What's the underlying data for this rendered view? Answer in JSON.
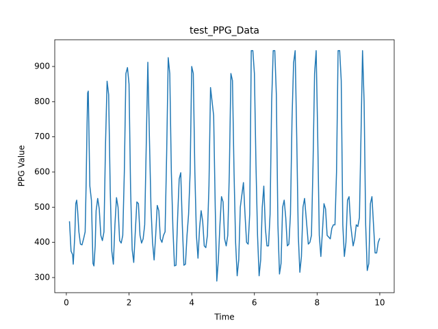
{
  "chart_data": {
    "type": "line",
    "title": "test_PPG_Data",
    "x_label": "Time",
    "y_label": "PPG Value",
    "xlim": [
      -0.37,
      10.46
    ],
    "ylim": [
      257,
      976
    ],
    "xticks": [
      0,
      2,
      4,
      6,
      8,
      10
    ],
    "yticks": [
      300,
      400,
      500,
      600,
      700,
      800,
      900
    ],
    "series": [
      {
        "color": "#1f77b4",
        "x": [
          0.1,
          0.15,
          0.2,
          0.22,
          0.27,
          0.3,
          0.33,
          0.36,
          0.4,
          0.45,
          0.5,
          0.55,
          0.6,
          0.63,
          0.66,
          0.68,
          0.7,
          0.72,
          0.75,
          0.8,
          0.85,
          0.88,
          0.92,
          0.95,
          1.0,
          1.05,
          1.1,
          1.15,
          1.2,
          1.25,
          1.3,
          1.35,
          1.4,
          1.45,
          1.5,
          1.55,
          1.6,
          1.65,
          1.7,
          1.75,
          1.8,
          1.85,
          1.9,
          1.95,
          2.0,
          2.05,
          2.1,
          2.15,
          2.2,
          2.25,
          2.3,
          2.35,
          2.4,
          2.45,
          2.5,
          2.55,
          2.6,
          2.65,
          2.7,
          2.75,
          2.8,
          2.85,
          2.9,
          2.95,
          3.0,
          3.05,
          3.1,
          3.15,
          3.2,
          3.25,
          3.3,
          3.35,
          3.4,
          3.45,
          3.5,
          3.55,
          3.6,
          3.65,
          3.7,
          3.75,
          3.8,
          3.85,
          3.9,
          3.95,
          4.0,
          4.05,
          4.1,
          4.15,
          4.2,
          4.25,
          4.3,
          4.35,
          4.4,
          4.45,
          4.5,
          4.55,
          4.6,
          4.7,
          4.75,
          4.8,
          4.85,
          4.9,
          4.95,
          5.0,
          5.05,
          5.1,
          5.15,
          5.2,
          5.25,
          5.3,
          5.35,
          5.4,
          5.45,
          5.5,
          5.55,
          5.65,
          5.7,
          5.75,
          5.8,
          5.85,
          5.9,
          5.95,
          6.0,
          6.05,
          6.1,
          6.15,
          6.2,
          6.25,
          6.3,
          6.35,
          6.4,
          6.45,
          6.5,
          6.55,
          6.6,
          6.65,
          6.7,
          6.75,
          6.8,
          6.85,
          6.9,
          6.95,
          7.0,
          7.05,
          7.1,
          7.15,
          7.2,
          7.25,
          7.3,
          7.35,
          7.4,
          7.45,
          7.5,
          7.55,
          7.6,
          7.67,
          7.72,
          7.77,
          7.82,
          7.87,
          7.92,
          7.97,
          8.02,
          8.07,
          8.12,
          8.17,
          8.22,
          8.27,
          8.32,
          8.42,
          8.47,
          8.52,
          8.57,
          8.62,
          8.67,
          8.72,
          8.77,
          8.82,
          8.87,
          8.92,
          8.97,
          9.02,
          9.07,
          9.15,
          9.2,
          9.25,
          9.3,
          9.35,
          9.4,
          9.45,
          9.5,
          9.55,
          9.6,
          9.65,
          9.7,
          9.75,
          9.8,
          9.85,
          9.9,
          9.95,
          10.0
        ],
        "values": [
          460,
          375,
          365,
          338,
          420,
          510,
          520,
          490,
          430,
          395,
          393,
          410,
          430,
          560,
          730,
          825,
          830,
          720,
          560,
          520,
          340,
          333,
          390,
          490,
          525,
          495,
          420,
          405,
          430,
          680,
          858,
          820,
          550,
          375,
          338,
          450,
          527,
          500,
          405,
          398,
          420,
          600,
          880,
          897,
          850,
          550,
          380,
          343,
          430,
          515,
          510,
          420,
          398,
          410,
          450,
          680,
          912,
          700,
          500,
          400,
          350,
          420,
          505,
          490,
          410,
          400,
          420,
          430,
          650,
          925,
          880,
          600,
          440,
          333,
          335,
          470,
          580,
          598,
          450,
          335,
          338,
          420,
          480,
          600,
          900,
          880,
          600,
          420,
          355,
          440,
          490,
          460,
          390,
          385,
          420,
          560,
          840,
          760,
          500,
          290,
          350,
          450,
          530,
          515,
          410,
          390,
          420,
          600,
          880,
          860,
          600,
          400,
          305,
          350,
          500,
          570,
          480,
          400,
          395,
          480,
          945,
          945,
          880,
          620,
          420,
          305,
          350,
          500,
          560,
          440,
          390,
          390,
          480,
          800,
          945,
          945,
          820,
          450,
          310,
          340,
          500,
          520,
          470,
          390,
          395,
          480,
          750,
          910,
          945,
          700,
          420,
          315,
          360,
          500,
          525,
          450,
          395,
          400,
          420,
          620,
          880,
          945,
          700,
          420,
          360,
          430,
          510,
          495,
          420,
          410,
          440,
          450,
          450,
          600,
          945,
          945,
          860,
          450,
          360,
          400,
          520,
          530,
          450,
          390,
          410,
          450,
          445,
          470,
          700,
          945,
          800,
          450,
          320,
          340,
          510,
          530,
          450,
          370,
          370,
          400,
          412
        ]
      }
    ]
  }
}
